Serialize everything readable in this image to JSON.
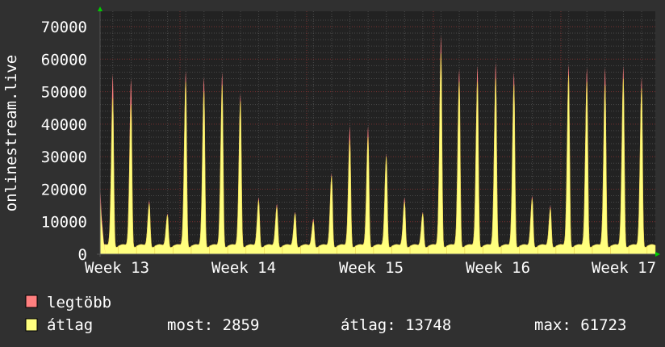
{
  "chart_data": {
    "type": "area",
    "ylabel": "onlinestream.live",
    "ylim": [
      0,
      70000
    ],
    "yticks": [
      "0",
      "10000",
      "20000",
      "30000",
      "40000",
      "50000",
      "60000",
      "70000"
    ],
    "xticks": [
      "Week 13",
      "Week 14",
      "Week 15",
      "Week 16",
      "Week 17"
    ],
    "x_unit": "days from start",
    "xlim": [
      0,
      30.45
    ],
    "series": [
      {
        "name": "legtöbb",
        "color": "#ff7f7f",
        "daily_peaks": [
          55500,
          54000,
          16500,
          12500,
          56500,
          54500,
          56000,
          49500,
          17500,
          15500,
          13000,
          11000,
          25000,
          39500,
          39500,
          31000,
          17500,
          13000,
          67500,
          57000,
          58000,
          59000,
          56000,
          18000,
          15000,
          58500,
          57500,
          57500,
          58000,
          54500,
          3000
        ]
      },
      {
        "name": "átlag",
        "color": "#ffff7f",
        "daily_peaks": [
          48000,
          46000,
          15500,
          12000,
          53000,
          50000,
          52000,
          47000,
          16500,
          14500,
          12500,
          10000,
          24000,
          35000,
          36000,
          30000,
          16000,
          12500,
          61723,
          53000,
          53000,
          54000,
          52000,
          17000,
          14000,
          55000,
          53000,
          52000,
          54000,
          51000,
          2859
        ]
      }
    ]
  },
  "legend": {
    "max_label": "legtöbb",
    "avg_label": "átlag",
    "now": "most: 2859",
    "average": "átlag: 13748",
    "max": "max: 61723"
  }
}
